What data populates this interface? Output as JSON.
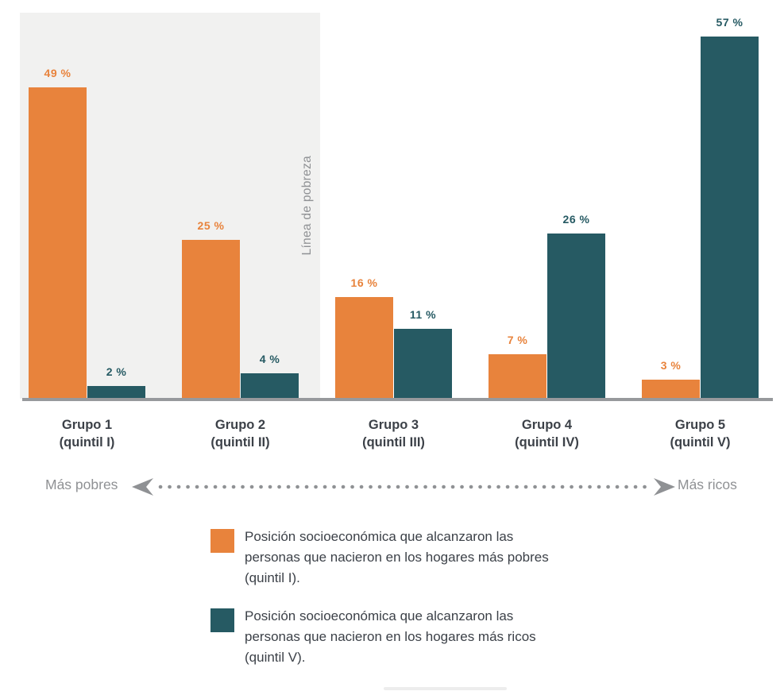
{
  "colors": {
    "accent_orange": "#E8833C",
    "accent_teal": "#265A63",
    "poverty_band": "#F1F1F0",
    "axis_gray": "#97999C",
    "label_dark": "#3C4148",
    "muted_gray": "#8F9194"
  },
  "chart_data": {
    "type": "bar",
    "title": "",
    "categories": [
      "Grupo 1",
      "Grupo 2",
      "Grupo 3",
      "Grupo 4",
      "Grupo 5"
    ],
    "category_sublabels": [
      "(quintil I)",
      "(quintil II)",
      "(quintil III)",
      "(quintil IV)",
      "(quintil V)"
    ],
    "series": [
      {
        "name": "Posición socioeconómica que alcanzaron las personas que nacieron en los hogares más pobres (quintil I).",
        "color": "#E8833C",
        "values": [
          49,
          25,
          16,
          7,
          3
        ]
      },
      {
        "name": "Posición socioeconómica que alcanzaron las personas que nacieron en los hogares más ricos (quintil V).",
        "color": "#265A63",
        "values": [
          2,
          4,
          11,
          26,
          57
        ]
      }
    ],
    "value_suffix": " %",
    "ylim": [
      0,
      60
    ],
    "grid": false,
    "legend_position": "bottom",
    "annotations": {
      "poverty_line": "Línea de pobreza",
      "poverty_band_covers": [
        "Grupo 1",
        "Grupo 2"
      ]
    }
  },
  "direction": {
    "left_label": "Más pobres",
    "right_label": "Más ricos"
  },
  "legend": {
    "items": [
      {
        "color": "#E8833C",
        "lines": [
          "Posición socioeconómica que alcanzaron las",
          "personas que nacieron en los hogares más pobres",
          "(quintil I)."
        ]
      },
      {
        "color": "#265A63",
        "lines": [
          "Posición socioeconómica que alcanzaron las",
          "personas que nacieron en los hogares más ricos",
          "(quintil V)."
        ]
      }
    ]
  }
}
